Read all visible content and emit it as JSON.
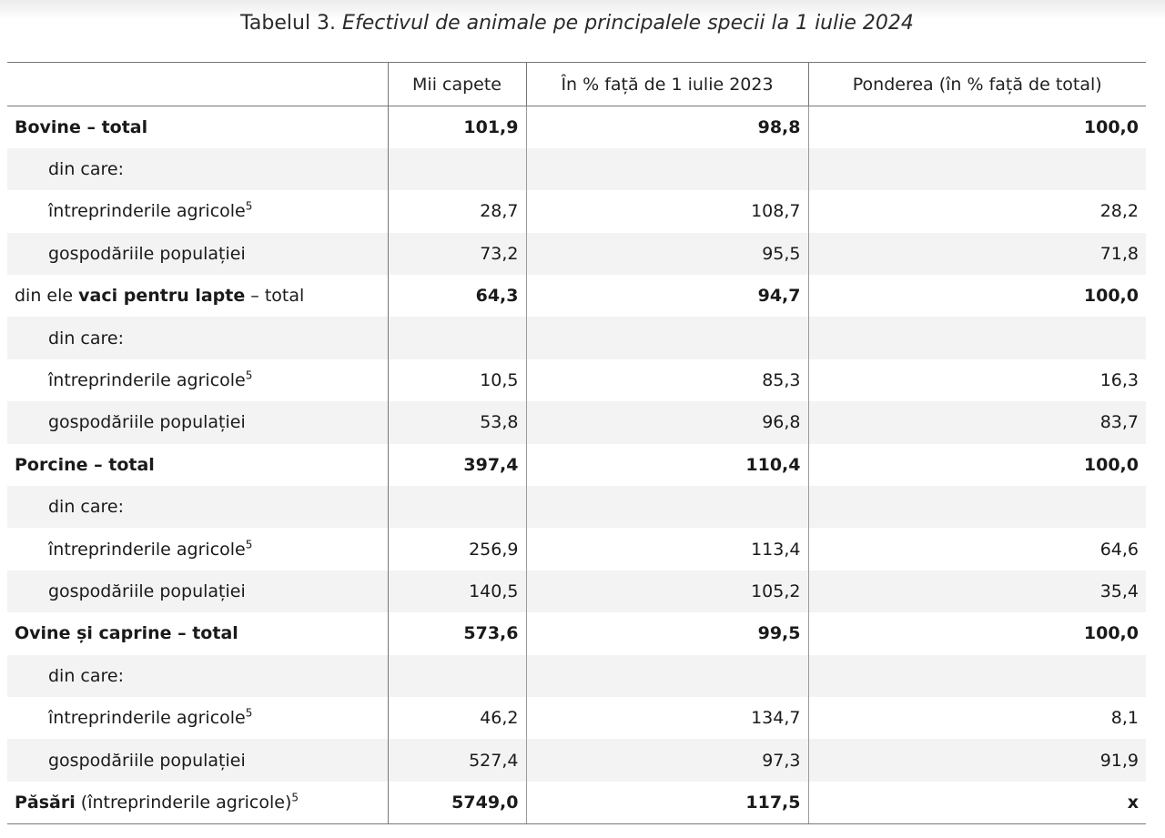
{
  "caption": {
    "prefix": "Tabelul 3.",
    "title": "Efectivul de animale pe principalele specii la 1 iulie 2024"
  },
  "table": {
    "headers": [
      "",
      "Mii capete",
      "În % față de 1 iulie 2023",
      "Ponderea (în % față de total)"
    ],
    "rows": [
      {
        "pre": "",
        "bold": "Bovine – total",
        "post": "",
        "sup": "",
        "values": [
          "101,9",
          "98,8",
          "100,0"
        ],
        "style": "bold",
        "shaded": false
      },
      {
        "pre": "din care:",
        "bold": "",
        "post": "",
        "sup": "",
        "values": [
          "",
          "",
          ""
        ],
        "style": "indent",
        "shaded": true
      },
      {
        "pre": "întreprinderile agricole",
        "bold": "",
        "post": "",
        "sup": "5",
        "values": [
          "28,7",
          "108,7",
          "28,2"
        ],
        "style": "indent",
        "shaded": false
      },
      {
        "pre": "gospodăriile populației",
        "bold": "",
        "post": "",
        "sup": "",
        "values": [
          "73,2",
          "95,5",
          "71,8"
        ],
        "style": "indent",
        "shaded": true
      },
      {
        "pre": "din ele ",
        "bold": "vaci pentru lapte",
        "post": " – total",
        "sup": "",
        "values": [
          "64,3",
          "94,7",
          "100,0"
        ],
        "style": "bold",
        "shaded": false
      },
      {
        "pre": "din care:",
        "bold": "",
        "post": "",
        "sup": "",
        "values": [
          "",
          "",
          ""
        ],
        "style": "indent",
        "shaded": true
      },
      {
        "pre": "întreprinderile agricole",
        "bold": "",
        "post": "",
        "sup": "5",
        "values": [
          "10,5",
          "85,3",
          "16,3"
        ],
        "style": "indent",
        "shaded": false
      },
      {
        "pre": "gospodăriile populației",
        "bold": "",
        "post": "",
        "sup": "",
        "values": [
          "53,8",
          "96,8",
          "83,7"
        ],
        "style": "indent",
        "shaded": true
      },
      {
        "pre": "",
        "bold": "Porcine – total",
        "post": "",
        "sup": "",
        "values": [
          "397,4",
          "110,4",
          "100,0"
        ],
        "style": "bold",
        "shaded": false
      },
      {
        "pre": "din care:",
        "bold": "",
        "post": "",
        "sup": "",
        "values": [
          "",
          "",
          ""
        ],
        "style": "indent",
        "shaded": true
      },
      {
        "pre": "întreprinderile agricole",
        "bold": "",
        "post": "",
        "sup": "5",
        "values": [
          "256,9",
          "113,4",
          "64,6"
        ],
        "style": "indent",
        "shaded": false
      },
      {
        "pre": "gospodăriile populației",
        "bold": "",
        "post": "",
        "sup": "",
        "values": [
          "140,5",
          "105,2",
          "35,4"
        ],
        "style": "indent",
        "shaded": true
      },
      {
        "pre": "",
        "bold": "Ovine și caprine – total",
        "post": "",
        "sup": "",
        "values": [
          "573,6",
          "99,5",
          "100,0"
        ],
        "style": "bold",
        "shaded": false
      },
      {
        "pre": "din care:",
        "bold": "",
        "post": "",
        "sup": "",
        "values": [
          "",
          "",
          ""
        ],
        "style": "indent",
        "shaded": true
      },
      {
        "pre": "întreprinderile agricole",
        "bold": "",
        "post": "",
        "sup": "5",
        "values": [
          "46,2",
          "134,7",
          "8,1"
        ],
        "style": "indent",
        "shaded": false
      },
      {
        "pre": "gospodăriile populației",
        "bold": "",
        "post": "",
        "sup": "",
        "values": [
          "527,4",
          "97,3",
          "91,9"
        ],
        "style": "indent",
        "shaded": true
      },
      {
        "pre": "",
        "bold": "Păsări",
        "post": " (întreprinderile agricole)",
        "sup": "5",
        "values": [
          "5749,0",
          "117,5",
          "x"
        ],
        "style": "bold",
        "shaded": false
      }
    ]
  }
}
